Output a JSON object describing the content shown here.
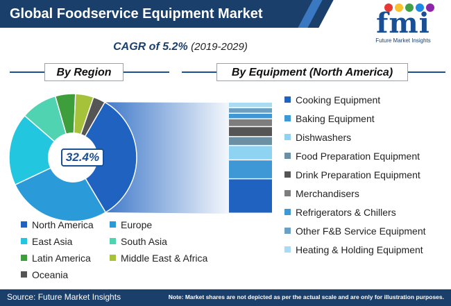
{
  "header": {
    "title": "Global Foodservice Equipment Market",
    "cagr_label": "CAGR of  5.2%",
    "cagr_years": "(2019-2029)"
  },
  "logo": {
    "text": "fmi",
    "subtitle": "Future Market Insights",
    "dot_colors": [
      "#e53935",
      "#fbc02d",
      "#43a047",
      "#1e88e5",
      "#8e24aa"
    ]
  },
  "footer": {
    "source": "Source: Future Market Insights",
    "note": "Note: Market shares are not depicted as per the actual scale and are only for illustration purposes."
  },
  "chart_data": [
    {
      "type": "pie",
      "title": "By Region",
      "highlight_label": "32.4%",
      "series": [
        {
          "name": "North America",
          "value": 32.4,
          "color": "#1f62c0"
        },
        {
          "name": "Europe",
          "value": 26.0,
          "color": "#2a9bd8"
        },
        {
          "name": "East Asia",
          "value": 18.0,
          "color": "#22c7df"
        },
        {
          "name": "South Asia",
          "value": 9.0,
          "color": "#4fd3b0"
        },
        {
          "name": "Latin America",
          "value": 5.0,
          "color": "#3f9e3c"
        },
        {
          "name": "Middle East & Africa",
          "value": 4.5,
          "color": "#a5c23a"
        },
        {
          "name": "Oceania",
          "value": 3.0,
          "color": "#555555"
        }
      ],
      "start_angle_deg": 30,
      "legend_placement": "bottom"
    },
    {
      "type": "bar",
      "stacked": true,
      "title": "By Equipment (North America)",
      "categories": [
        "Cooking Equipment",
        "Baking Equipment",
        "Dishwashers",
        "Food Preparation Equipment",
        "Drink Preparation Equipment",
        "Merchandisers",
        "Refrigerators & Chillers",
        "Other F&B Service Equipment",
        "Heating & Holding Equipment"
      ],
      "values": [
        31,
        17,
        13,
        8,
        9,
        7,
        5,
        5,
        5
      ],
      "colors": [
        "#1f62c0",
        "#3f98d6",
        "#8fd3f2",
        "#6b8fa3",
        "#555555",
        "#7d7d7d",
        "#3f98d6",
        "#6ba0c2",
        "#a9dcf2"
      ],
      "legend_placement": "right"
    }
  ]
}
